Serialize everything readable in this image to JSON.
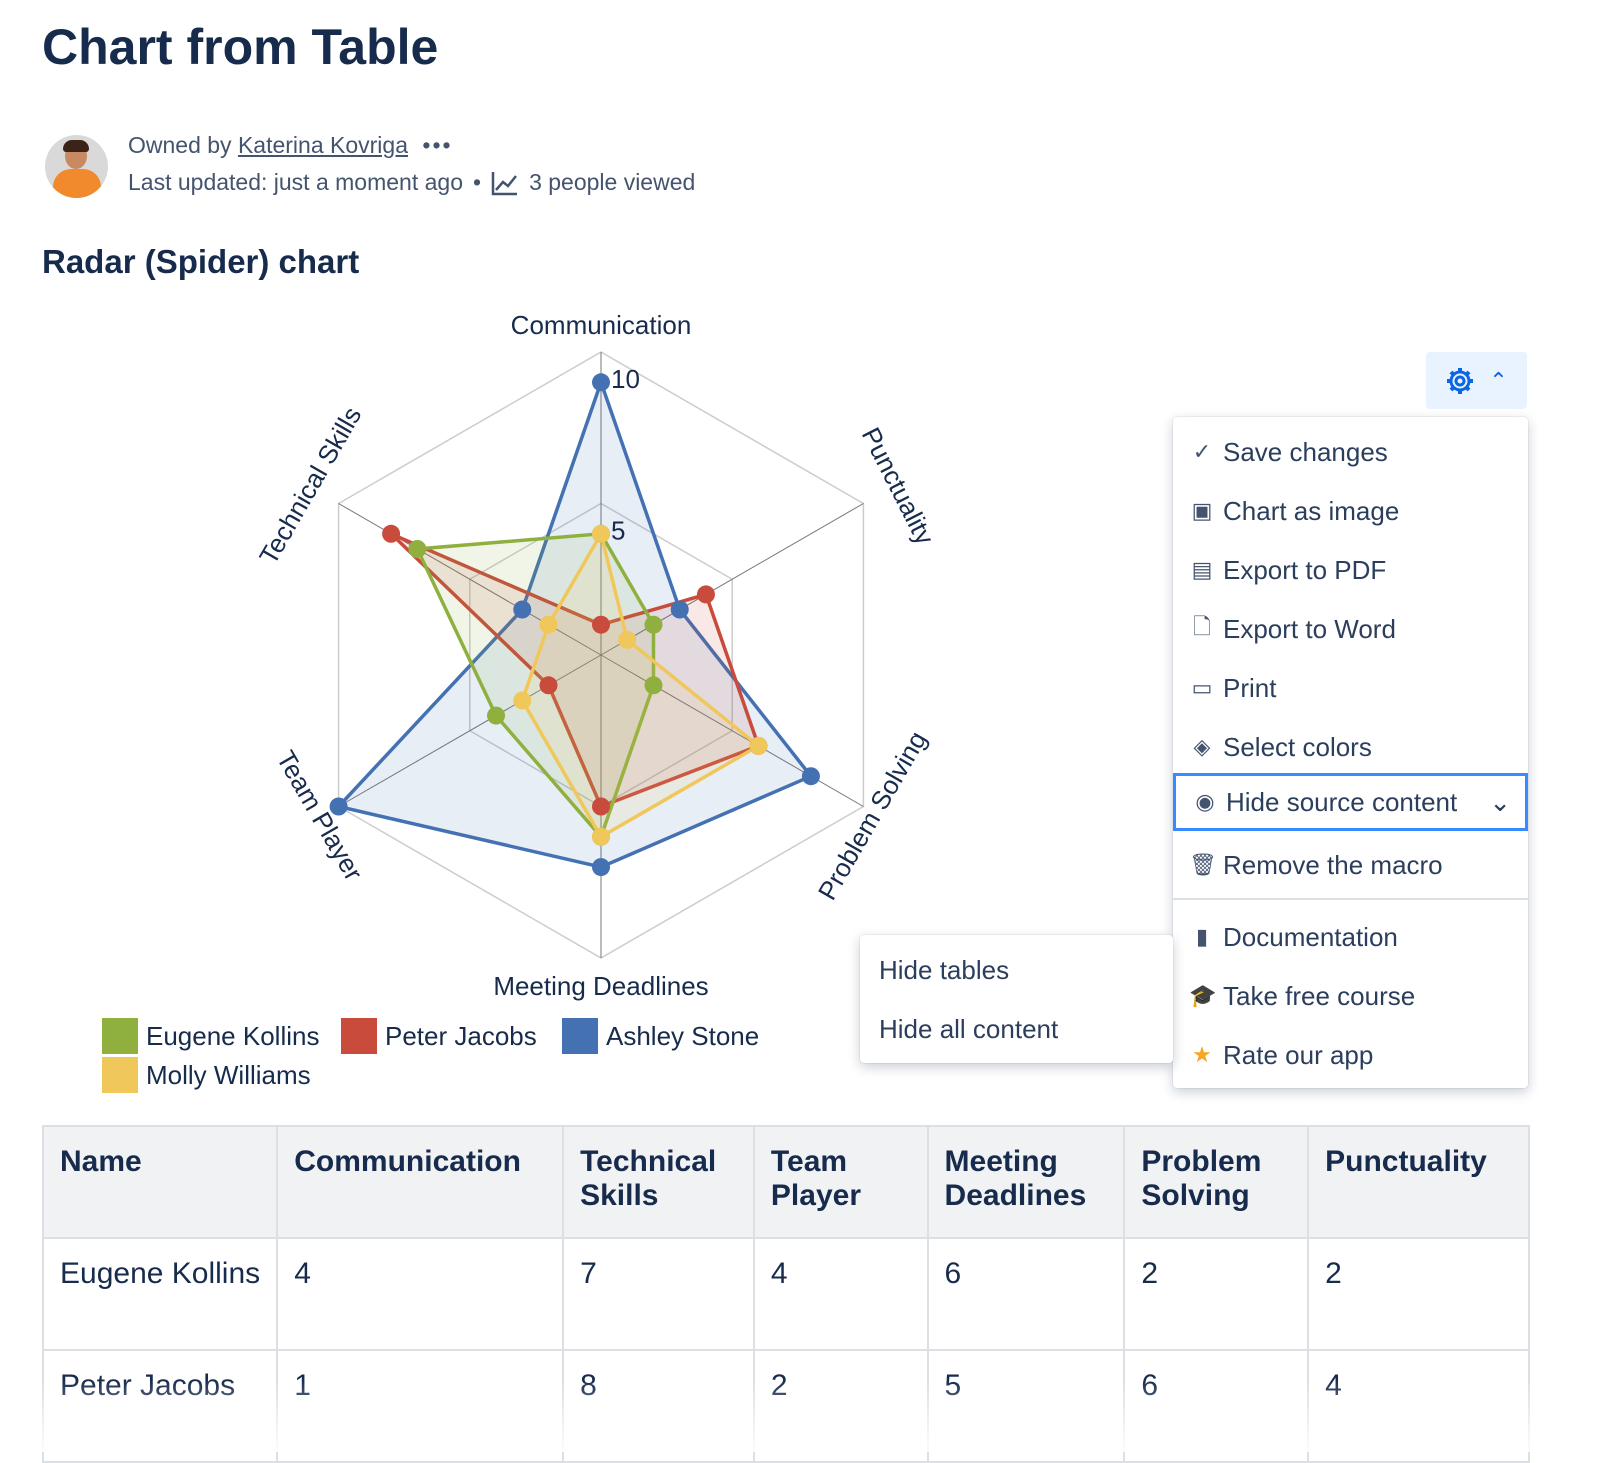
{
  "page": {
    "title": "Chart from Table",
    "owned_by_label": "Owned by",
    "owner": "Katerina Kovriga",
    "more": "•••",
    "last_updated": "Last updated: just a moment ago",
    "dot": "•",
    "views": "3 people viewed",
    "section_title": "Radar (Spider) chart"
  },
  "menu": {
    "items": [
      {
        "icon": "check-icon",
        "glyph": "✓",
        "label": "Save changes"
      },
      {
        "icon": "image-icon",
        "glyph": "▣",
        "label": "Chart as image"
      },
      {
        "icon": "pdf-icon",
        "glyph": "▤",
        "label": "Export to PDF"
      },
      {
        "icon": "document-icon",
        "glyph": "🗋",
        "label": "Export to Word"
      },
      {
        "icon": "print-icon",
        "glyph": "▭",
        "label": "Print"
      },
      {
        "icon": "paint-bucket-icon",
        "glyph": "◈",
        "label": "Select colors"
      },
      {
        "icon": "eye-icon",
        "glyph": "◉",
        "label": "Hide source content"
      },
      {
        "icon": "trash-icon",
        "glyph": "🗑",
        "label": "Remove the macro"
      },
      {
        "icon": "file-icon",
        "glyph": "▮",
        "label": "Documentation"
      },
      {
        "icon": "graduation-cap-icon",
        "glyph": "🎓",
        "label": "Take free course"
      },
      {
        "icon": "star-icon",
        "glyph": "★",
        "label": "Rate our app"
      }
    ],
    "submenu": [
      "Hide tables",
      "Hide all content"
    ]
  },
  "chart_data": {
    "type": "radar",
    "title": "Radar (Spider) chart",
    "axes": [
      "Communication",
      "Punctuality",
      "Problem Solving",
      "Meeting Deadlines",
      "Team Player",
      "Technical Skills"
    ],
    "range": [
      0,
      10
    ],
    "ticks": [
      5,
      10
    ],
    "series": [
      {
        "name": "Eugene Kollins",
        "color": "#8fb03e",
        "values": [
          4,
          2,
          2,
          6,
          4,
          7
        ]
      },
      {
        "name": "Peter Jacobs",
        "color": "#c84b3c",
        "values": [
          1,
          4,
          6,
          5,
          2,
          8
        ]
      },
      {
        "name": "Ashley Stone",
        "color": "#4471b2",
        "values": [
          9,
          3,
          8,
          7,
          10,
          3
        ]
      },
      {
        "name": "Molly Williams",
        "color": "#f0c75a",
        "values": [
          4,
          1,
          6,
          6,
          3,
          2
        ]
      }
    ],
    "legend": "bottom-left"
  },
  "table": {
    "headers": [
      "Name",
      "Communication",
      "Technical Skills",
      "Team Player",
      "Meeting Deadlines",
      "Problem Solving",
      "Punctuality"
    ],
    "rows": [
      [
        "Eugene Kollins",
        "4",
        "7",
        "4",
        "6",
        "2",
        "2"
      ],
      [
        "Peter Jacobs",
        "1",
        "8",
        "2",
        "5",
        "6",
        "4"
      ]
    ]
  }
}
